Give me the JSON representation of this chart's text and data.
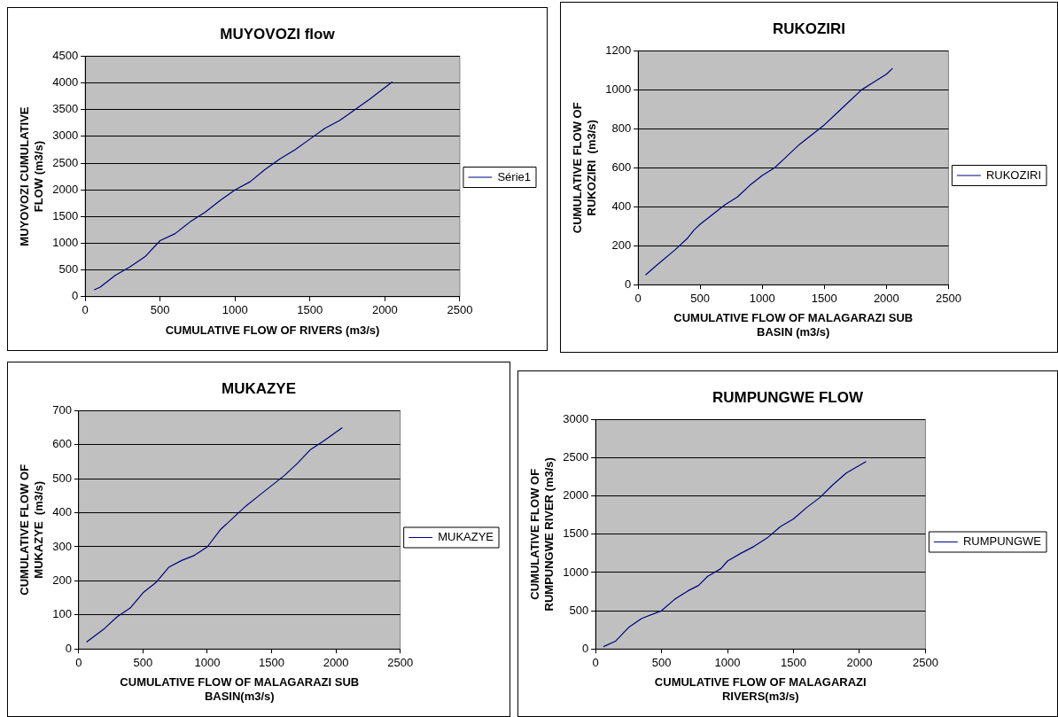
{
  "chart_data": [
    {
      "type": "line",
      "title": "MUYOVOZI flow",
      "xlabel": "CUMULATIVE FLOW OF RIVERS (m3/s)",
      "ylabel": "MUYOVOZI CUMULATIVE\nFLOW (m3/s)",
      "xlim": [
        0,
        2500
      ],
      "xticks": [
        0,
        500,
        1000,
        1500,
        2000,
        2500
      ],
      "ylim": [
        0,
        4500
      ],
      "yticks": [
        0,
        500,
        1000,
        1500,
        2000,
        2500,
        3000,
        3500,
        4000,
        4500
      ],
      "grid": "y",
      "legend": "right",
      "series": [
        {
          "name": "Série1",
          "color": "#000080",
          "x": [
            60,
            100,
            200,
            300,
            400,
            500,
            600,
            700,
            800,
            900,
            1000,
            1100,
            1200,
            1300,
            1400,
            1500,
            1600,
            1700,
            1800,
            1900,
            2050
          ],
          "values": [
            130,
            180,
            400,
            560,
            750,
            1050,
            1180,
            1400,
            1580,
            1800,
            2000,
            2150,
            2380,
            2580,
            2750,
            2950,
            3150,
            3300,
            3500,
            3700,
            4020
          ]
        }
      ]
    },
    {
      "type": "line",
      "title": "RUKOZIRI",
      "xlabel": "CUMULATIVE FLOW OF MALAGARAZI SUB\nBASIN (m3/s)",
      "ylabel": "CUMULATIVE FLOW OF\nRUKOZIRI  (m3/s)",
      "xlim": [
        0,
        2500
      ],
      "xticks": [
        0,
        500,
        1000,
        1500,
        2000,
        2500
      ],
      "ylim": [
        0,
        1200
      ],
      "yticks": [
        0,
        200,
        400,
        600,
        800,
        1000,
        1200
      ],
      "grid": "y",
      "legend": "right",
      "series": [
        {
          "name": "RUKOZIRI",
          "color": "#000080",
          "x": [
            60,
            150,
            300,
            400,
            450,
            500,
            600,
            700,
            800,
            900,
            1000,
            1100,
            1200,
            1300,
            1400,
            1500,
            1600,
            1700,
            1800,
            1900,
            2000,
            2050
          ],
          "values": [
            50,
            100,
            180,
            240,
            280,
            310,
            360,
            410,
            450,
            510,
            560,
            600,
            660,
            720,
            770,
            820,
            880,
            940,
            1000,
            1040,
            1080,
            1110
          ]
        }
      ]
    },
    {
      "type": "line",
      "title": "MUKAZYE",
      "xlabel": "CUMULATIVE FLOW OF MALAGARAZI SUB\nBASIN(m3/s)",
      "ylabel": "CUMULATIVE FLOW OF\nMUKAZYE  (m3/s)",
      "xlim": [
        0,
        2500
      ],
      "xticks": [
        0,
        500,
        1000,
        1500,
        2000,
        2500
      ],
      "ylim": [
        0,
        700
      ],
      "yticks": [
        0,
        100,
        200,
        300,
        400,
        500,
        600,
        700
      ],
      "grid": "y",
      "legend": "right",
      "series": [
        {
          "name": "MUKAZYE",
          "color": "#000080",
          "x": [
            60,
            200,
            300,
            400,
            500,
            600,
            700,
            800,
            900,
            1000,
            1100,
            1200,
            1300,
            1400,
            1500,
            1600,
            1700,
            1800,
            1900,
            2050
          ],
          "values": [
            20,
            60,
            95,
            120,
            165,
            195,
            240,
            260,
            275,
            300,
            350,
            385,
            420,
            450,
            480,
            510,
            545,
            585,
            610,
            650
          ]
        }
      ]
    },
    {
      "type": "line",
      "title": "RUMPUNGWE FLOW",
      "xlabel": "CUMULATIVE FLOW OF MALAGARAZI\nRIVERS(m3/s)",
      "ylabel": "CUMULATIVE FLOW OF\nRUMPUNGWE RIVER (m3/s)",
      "xlim": [
        0,
        2500
      ],
      "xticks": [
        0,
        500,
        1000,
        1500,
        2000,
        2500
      ],
      "ylim": [
        0,
        3000
      ],
      "yticks": [
        0,
        500,
        1000,
        1500,
        2000,
        2500,
        3000
      ],
      "grid": "y",
      "legend": "right",
      "series": [
        {
          "name": "RUMPUNGWE",
          "color": "#000080",
          "x": [
            60,
            150,
            250,
            350,
            500,
            600,
            700,
            780,
            850,
            950,
            1000,
            1100,
            1200,
            1300,
            1400,
            1500,
            1600,
            1700,
            1800,
            1900,
            2050
          ],
          "values": [
            30,
            100,
            280,
            400,
            500,
            650,
            760,
            830,
            950,
            1050,
            1150,
            1250,
            1340,
            1450,
            1600,
            1700,
            1850,
            1980,
            2150,
            2300,
            2450
          ]
        }
      ]
    }
  ]
}
